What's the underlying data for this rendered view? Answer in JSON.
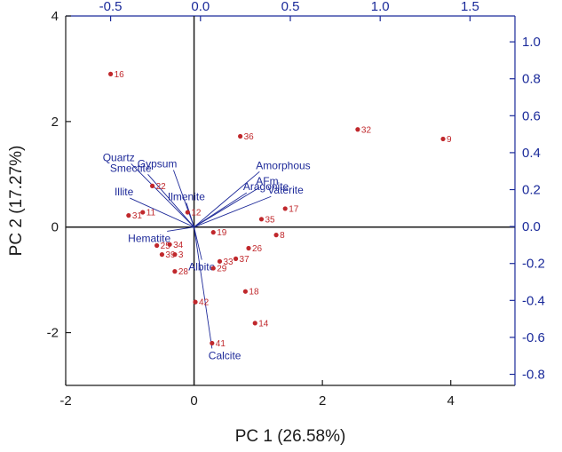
{
  "chart_data": {
    "type": "scatter",
    "subtype": "pca-biplot",
    "title": "",
    "xlabel": "PC 1 (26.58%)",
    "ylabel": "PC 2 (17.27%)",
    "xlim": [
      -2,
      5
    ],
    "ylim": [
      -3,
      4
    ],
    "xticks": [
      -2,
      0,
      2,
      4
    ],
    "yticks": [
      -2,
      0,
      2,
      4
    ],
    "x2lim": [
      -0.75,
      1.75
    ],
    "y2lim": [
      -0.86,
      1.14
    ],
    "x2ticks": [
      "-0.5",
      "0.0",
      "0.5",
      "1.0",
      "1.5"
    ],
    "y2ticks": [
      "1.0",
      "0.8",
      "0.6",
      "0.4",
      "0.2",
      "0.0",
      "-0.2",
      "-0.4",
      "-0.6",
      "-0.8"
    ],
    "colors": {
      "scores": "#c0282c",
      "loadings": "#1e2a99",
      "axes": "#1a1a1a",
      "secondary_axes": "#1a2a9a"
    },
    "scores": [
      {
        "label": "16",
        "x": -1.3,
        "y": 2.9
      },
      {
        "label": "36",
        "x": 0.72,
        "y": 1.72
      },
      {
        "label": "32",
        "x": 2.55,
        "y": 1.85
      },
      {
        "label": "9",
        "x": 3.88,
        "y": 1.67
      },
      {
        "label": "22",
        "x": -0.65,
        "y": 0.78
      },
      {
        "label": "17",
        "x": 1.42,
        "y": 0.35
      },
      {
        "label": "35",
        "x": 1.05,
        "y": 0.15
      },
      {
        "label": "8",
        "x": 1.28,
        "y": -0.15
      },
      {
        "label": "19",
        "x": 0.3,
        "y": -0.1
      },
      {
        "label": "12",
        "x": -0.1,
        "y": 0.28
      },
      {
        "label": "26",
        "x": 0.85,
        "y": -0.4
      },
      {
        "label": "37",
        "x": 0.65,
        "y": -0.6
      },
      {
        "label": "33",
        "x": 0.4,
        "y": -0.65
      },
      {
        "label": "29",
        "x": 0.3,
        "y": -0.78
      },
      {
        "label": "18",
        "x": 0.8,
        "y": -1.22
      },
      {
        "label": "14",
        "x": 0.95,
        "y": -1.82
      },
      {
        "label": "42",
        "x": 0.02,
        "y": -1.42
      },
      {
        "label": "41",
        "x": 0.28,
        "y": -2.2
      },
      {
        "label": "31",
        "x": -1.02,
        "y": 0.22
      },
      {
        "label": "11",
        "x": -0.8,
        "y": 0.28
      },
      {
        "label": "25",
        "x": -0.58,
        "y": -0.35
      },
      {
        "label": "34",
        "x": -0.38,
        "y": -0.33
      },
      {
        "label": "39",
        "x": -0.5,
        "y": -0.52
      },
      {
        "label": "3",
        "x": -0.3,
        "y": -0.52
      },
      {
        "label": "28",
        "x": -0.3,
        "y": -0.84
      }
    ],
    "loadings": [
      {
        "label": "Quartz",
        "x": -0.98,
        "y": 1.2
      },
      {
        "label": "Smectite",
        "x": -0.72,
        "y": 1.0
      },
      {
        "label": "Gypsum",
        "x": -0.32,
        "y": 1.08
      },
      {
        "label": "Illite",
        "x": -1.0,
        "y": 0.55
      },
      {
        "label": "Ilmenite",
        "x": -0.12,
        "y": 0.46
      },
      {
        "label": "Hematite",
        "x": -0.42,
        "y": -0.08
      },
      {
        "label": "Amorphous",
        "x": 1.02,
        "y": 1.05
      },
      {
        "label": "AFm",
        "x": 1.02,
        "y": 0.75
      },
      {
        "label": "Aragonite",
        "x": 0.82,
        "y": 0.65
      },
      {
        "label": "Vaterite",
        "x": 1.2,
        "y": 0.58
      },
      {
        "label": "Albite",
        "x": 0.12,
        "y": -0.62
      },
      {
        "label": "Calcite",
        "x": 0.28,
        "y": -2.3
      }
    ]
  }
}
